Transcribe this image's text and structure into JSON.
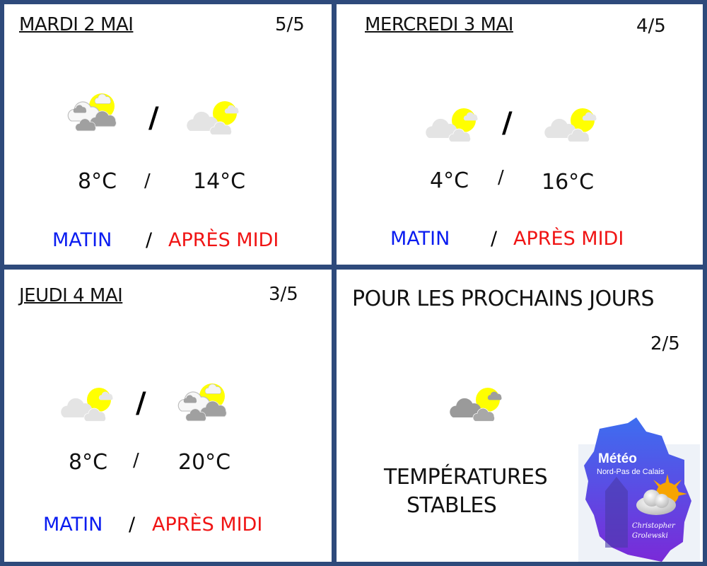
{
  "colors": {
    "border": "#2e4a7b",
    "morning": "#0a1cf0",
    "afternoon": "#f01414",
    "sun": "#ffff00"
  },
  "panels": [
    {
      "day": "MARDI 2 MAI",
      "page": "5/5",
      "icons": [
        "sun-cloud-mixed-icon",
        "sun-cloud-light-icon"
      ],
      "temp_morning": "8°C",
      "temp_afternoon": "14°C",
      "sep": "/",
      "morning": "MATIN",
      "afternoon": "APRÈS MIDI"
    },
    {
      "day": "MERCREDI 3 MAI",
      "page": "4/5",
      "icons": [
        "sun-cloud-light-icon",
        "sun-cloud-light-icon"
      ],
      "temp_morning": "4°C",
      "temp_afternoon": "16°C",
      "sep": "/",
      "morning": "MATIN",
      "afternoon": "APRÈS MIDI"
    },
    {
      "day": "JEUDI 4 MAI",
      "page": "3/5",
      "icons": [
        "sun-cloud-light-icon",
        "sun-cloud-mixed-icon"
      ],
      "temp_morning": "8°C",
      "temp_afternoon": "20°C",
      "sep": "/",
      "morning": "MATIN",
      "afternoon": "APRÈS MIDI"
    }
  ],
  "outlook": {
    "title": "POUR LES PROCHAINS JOURS",
    "page": "2/5",
    "icon": "sun-cloud-grey-icon",
    "line1": "TEMPÉRATURES",
    "line2": "STABLES"
  },
  "logo": {
    "title": "Météo",
    "subtitle": "Nord-Pas de Calais",
    "author": "Christopher Grolewski"
  }
}
